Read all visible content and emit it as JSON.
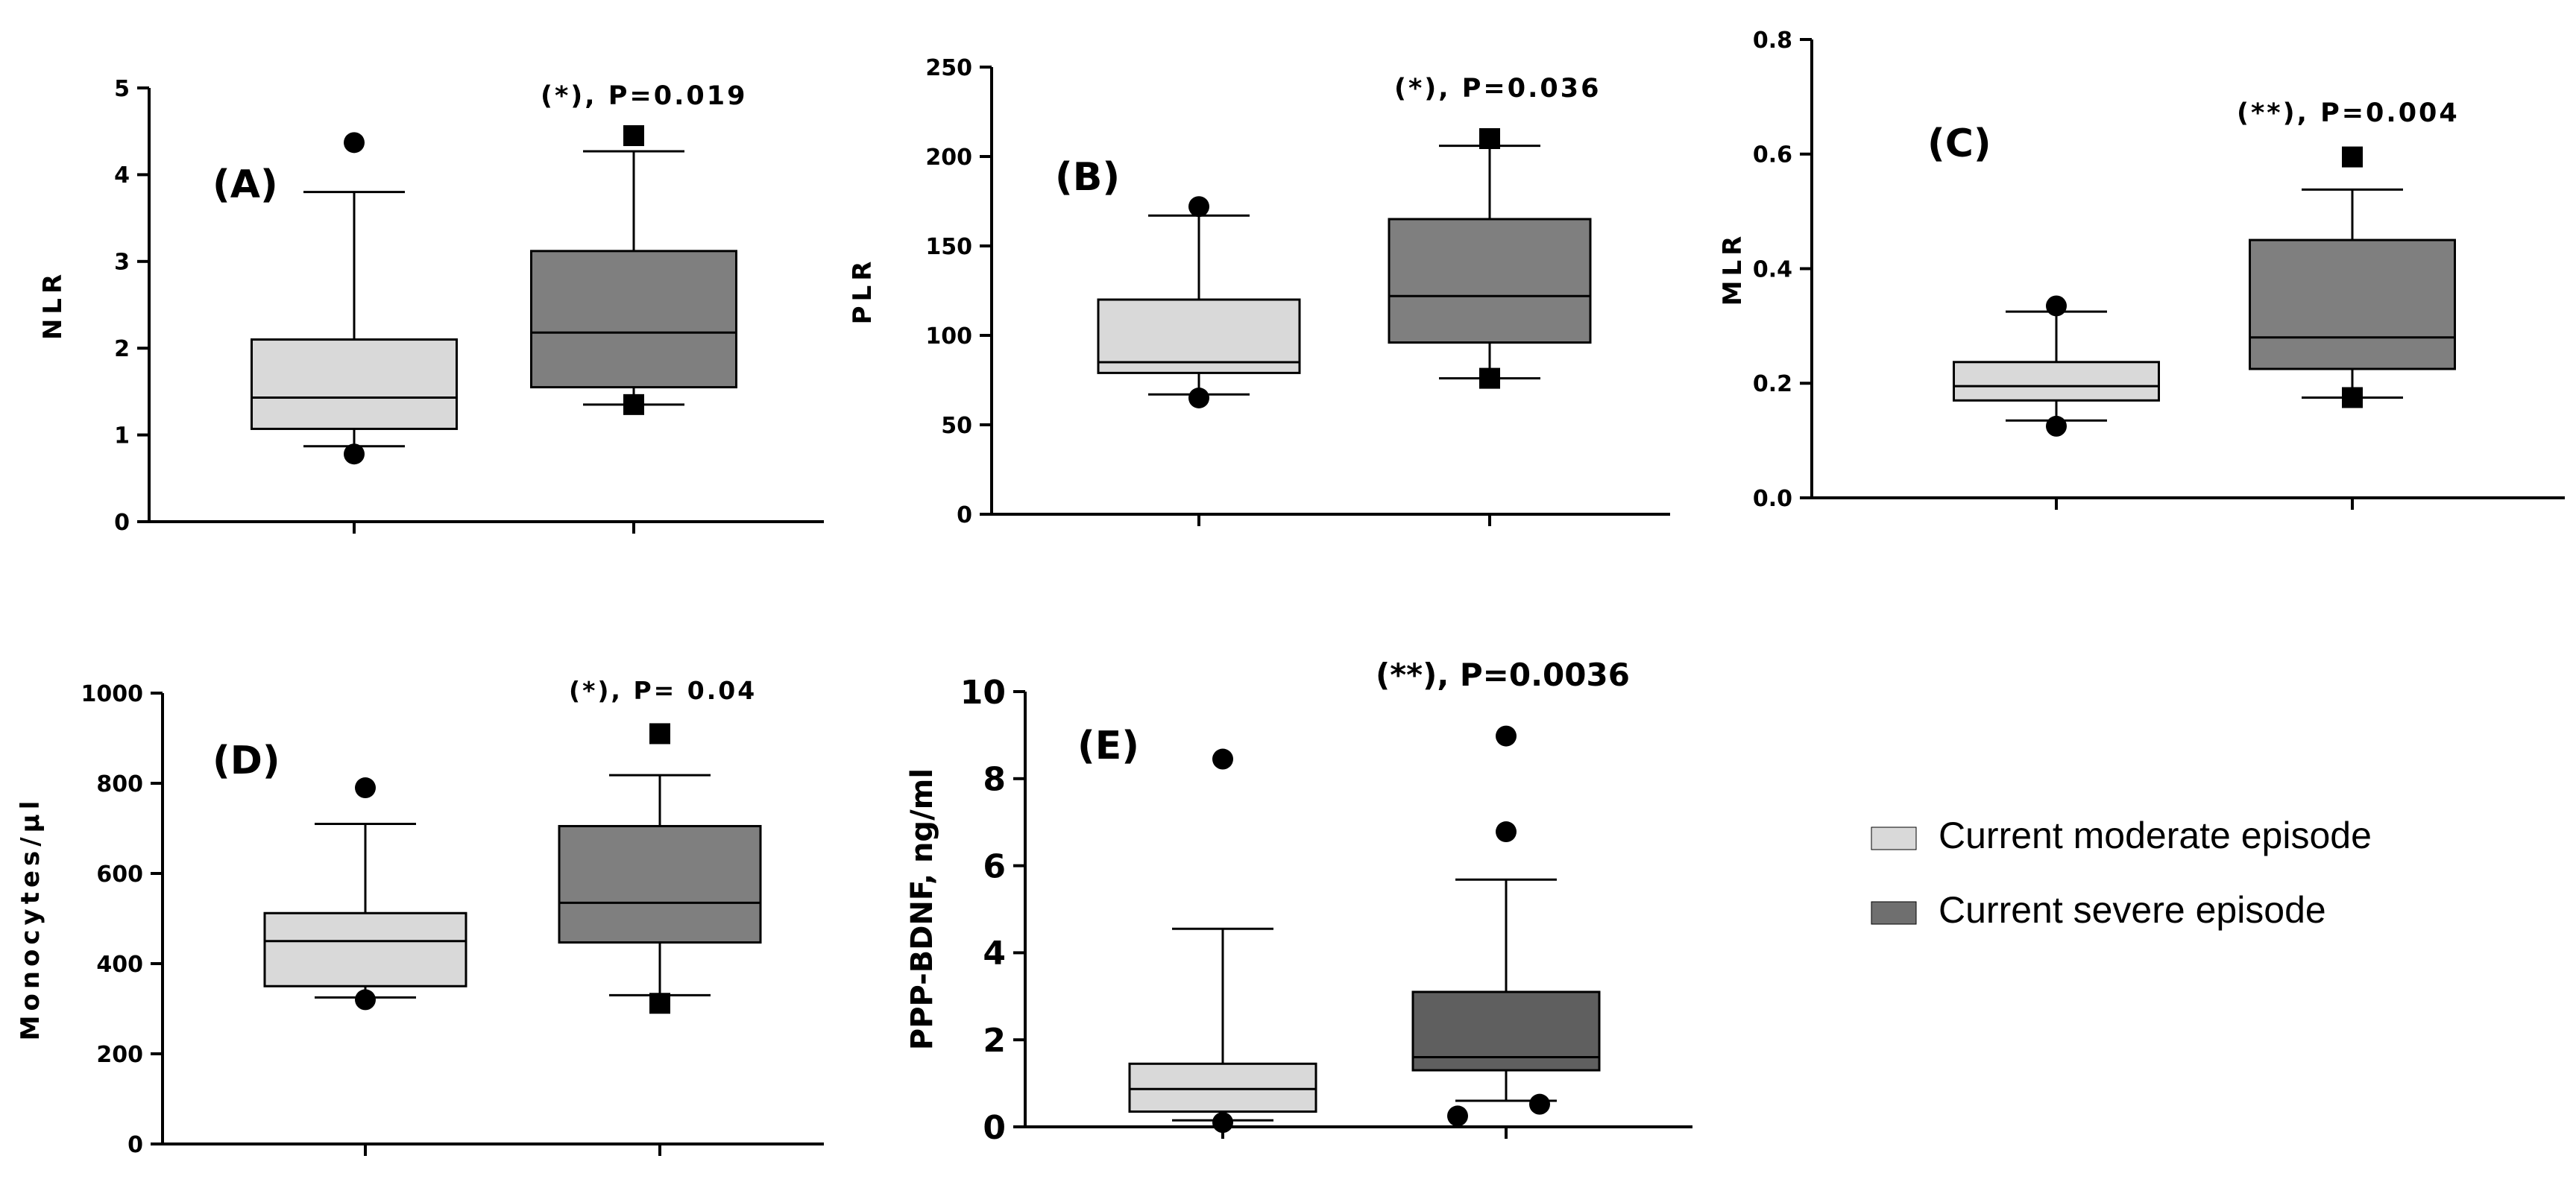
{
  "colors": {
    "moderate": "#d9d9d9",
    "severe": "#7f7f7f",
    "severe_dark": "#5f5f5f",
    "stroke": "#000000"
  },
  "legend": {
    "items": [
      {
        "label": "Current moderate episode",
        "color": "#d9d9d9"
      },
      {
        "label": "Current severe episode",
        "color": "#6f6f6f"
      }
    ]
  },
  "chart_data": [
    {
      "type": "boxplot",
      "panel_label": "(A)",
      "ylabel": "NLR",
      "annotation": "(*), P=0.019",
      "ylim": [
        0,
        5
      ],
      "yticks": [
        "0",
        "1",
        "2",
        "3",
        "4",
        "5"
      ],
      "ytick_values": [
        0,
        1,
        2,
        3,
        4,
        5
      ],
      "groups": [
        {
          "name": "Current moderate episode",
          "q1": 1.07,
          "median": 1.43,
          "q3": 2.1,
          "whisker_low": 0.87,
          "whisker_high": 3.8,
          "outliers": [
            0.78,
            4.37
          ],
          "marker": "circle"
        },
        {
          "name": "Current severe episode",
          "q1": 1.55,
          "median": 2.18,
          "q3": 3.12,
          "whisker_low": 1.35,
          "whisker_high": 4.27,
          "outliers": [
            1.35,
            4.45
          ],
          "marker": "square"
        }
      ]
    },
    {
      "type": "boxplot",
      "panel_label": "(B)",
      "ylabel": "PLR",
      "annotation": "(*), P=0.036",
      "ylim": [
        0,
        250
      ],
      "yticks": [
        "0",
        "50",
        "100",
        "150",
        "200",
        "250"
      ],
      "ytick_values": [
        0,
        50,
        100,
        150,
        200,
        250
      ],
      "groups": [
        {
          "name": "Current moderate episode",
          "q1": 79,
          "median": 85,
          "q3": 120,
          "whisker_low": 67,
          "whisker_high": 167,
          "outliers": [
            65,
            172
          ],
          "marker": "circle"
        },
        {
          "name": "Current severe episode",
          "q1": 96,
          "median": 122,
          "q3": 165,
          "whisker_low": 76,
          "whisker_high": 206,
          "outliers": [
            76,
            210
          ],
          "marker": "square"
        }
      ]
    },
    {
      "type": "boxplot",
      "panel_label": "(C)",
      "ylabel": "MLR",
      "annotation": "(**), P=0.004",
      "ylim": [
        0,
        0.8
      ],
      "yticks": [
        "0.0",
        "0.2",
        "0.4",
        "0.6",
        "0.8"
      ],
      "ytick_values": [
        0,
        0.2,
        0.4,
        0.6,
        0.8
      ],
      "groups": [
        {
          "name": "Current moderate episode",
          "q1": 0.17,
          "median": 0.195,
          "q3": 0.237,
          "whisker_low": 0.135,
          "whisker_high": 0.325,
          "outliers": [
            0.125,
            0.335
          ],
          "marker": "circle"
        },
        {
          "name": "Current severe episode",
          "q1": 0.225,
          "median": 0.28,
          "q3": 0.45,
          "whisker_low": 0.175,
          "whisker_high": 0.538,
          "outliers": [
            0.175,
            0.595
          ],
          "marker": "square"
        }
      ]
    },
    {
      "type": "boxplot",
      "panel_label": "(D)",
      "ylabel": "Monocytes/µl",
      "annotation": "(*), P= 0.04",
      "ylim": [
        0,
        1000
      ],
      "yticks": [
        "0",
        "200",
        "400",
        "600",
        "800",
        "1000"
      ],
      "ytick_values": [
        0,
        200,
        400,
        600,
        800,
        1000
      ],
      "groups": [
        {
          "name": "Current moderate episode",
          "q1": 350,
          "median": 450,
          "q3": 512,
          "whisker_low": 325,
          "whisker_high": 710,
          "outliers": [
            320,
            790
          ],
          "marker": "circle"
        },
        {
          "name": "Current severe episode",
          "q1": 447,
          "median": 535,
          "q3": 705,
          "whisker_low": 330,
          "whisker_high": 818,
          "outliers": [
            312,
            910
          ],
          "marker": "square"
        }
      ]
    },
    {
      "type": "boxplot",
      "panel_label": "(E)",
      "ylabel": "PPP-BDNF, ng/ml",
      "annotation": "(**), P=0.0036",
      "ylim": [
        0,
        10
      ],
      "yticks": [
        "0",
        "2",
        "4",
        "6",
        "8",
        "10"
      ],
      "ytick_values": [
        0,
        2,
        4,
        6,
        8,
        10
      ],
      "groups": [
        {
          "name": "Current moderate episode",
          "q1": 0.35,
          "median": 0.87,
          "q3": 1.45,
          "whisker_low": 0.15,
          "whisker_high": 4.55,
          "outliers": [
            0.1,
            8.45
          ],
          "marker": "circle"
        },
        {
          "name": "Current severe episode",
          "q1": 1.3,
          "median": 1.6,
          "q3": 3.1,
          "whisker_low": 0.6,
          "whisker_high": 5.68,
          "outliers": [
            0.25,
            0.52,
            6.78,
            8.98
          ],
          "marker": "circle"
        }
      ]
    }
  ]
}
